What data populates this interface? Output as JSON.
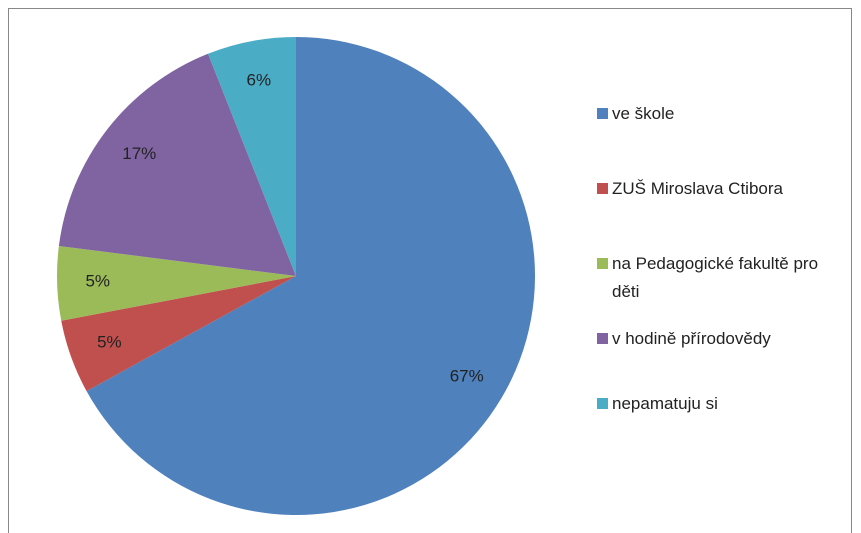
{
  "chart_data": {
    "type": "pie",
    "categories": [
      "ve škole",
      "ZUŠ Miroslava Ctibora",
      "na Pedagogické fakultě pro děti",
      "v hodině přírodovědy",
      "nepamatuju si"
    ],
    "values": [
      67,
      5,
      5,
      17,
      6
    ],
    "value_labels": [
      "67%",
      "5%",
      "5%",
      "17%",
      "6%"
    ],
    "colors": [
      "#4f81bd",
      "#c0504d",
      "#9bbb59",
      "#8064a2",
      "#4bacc6"
    ],
    "legend": "right"
  }
}
